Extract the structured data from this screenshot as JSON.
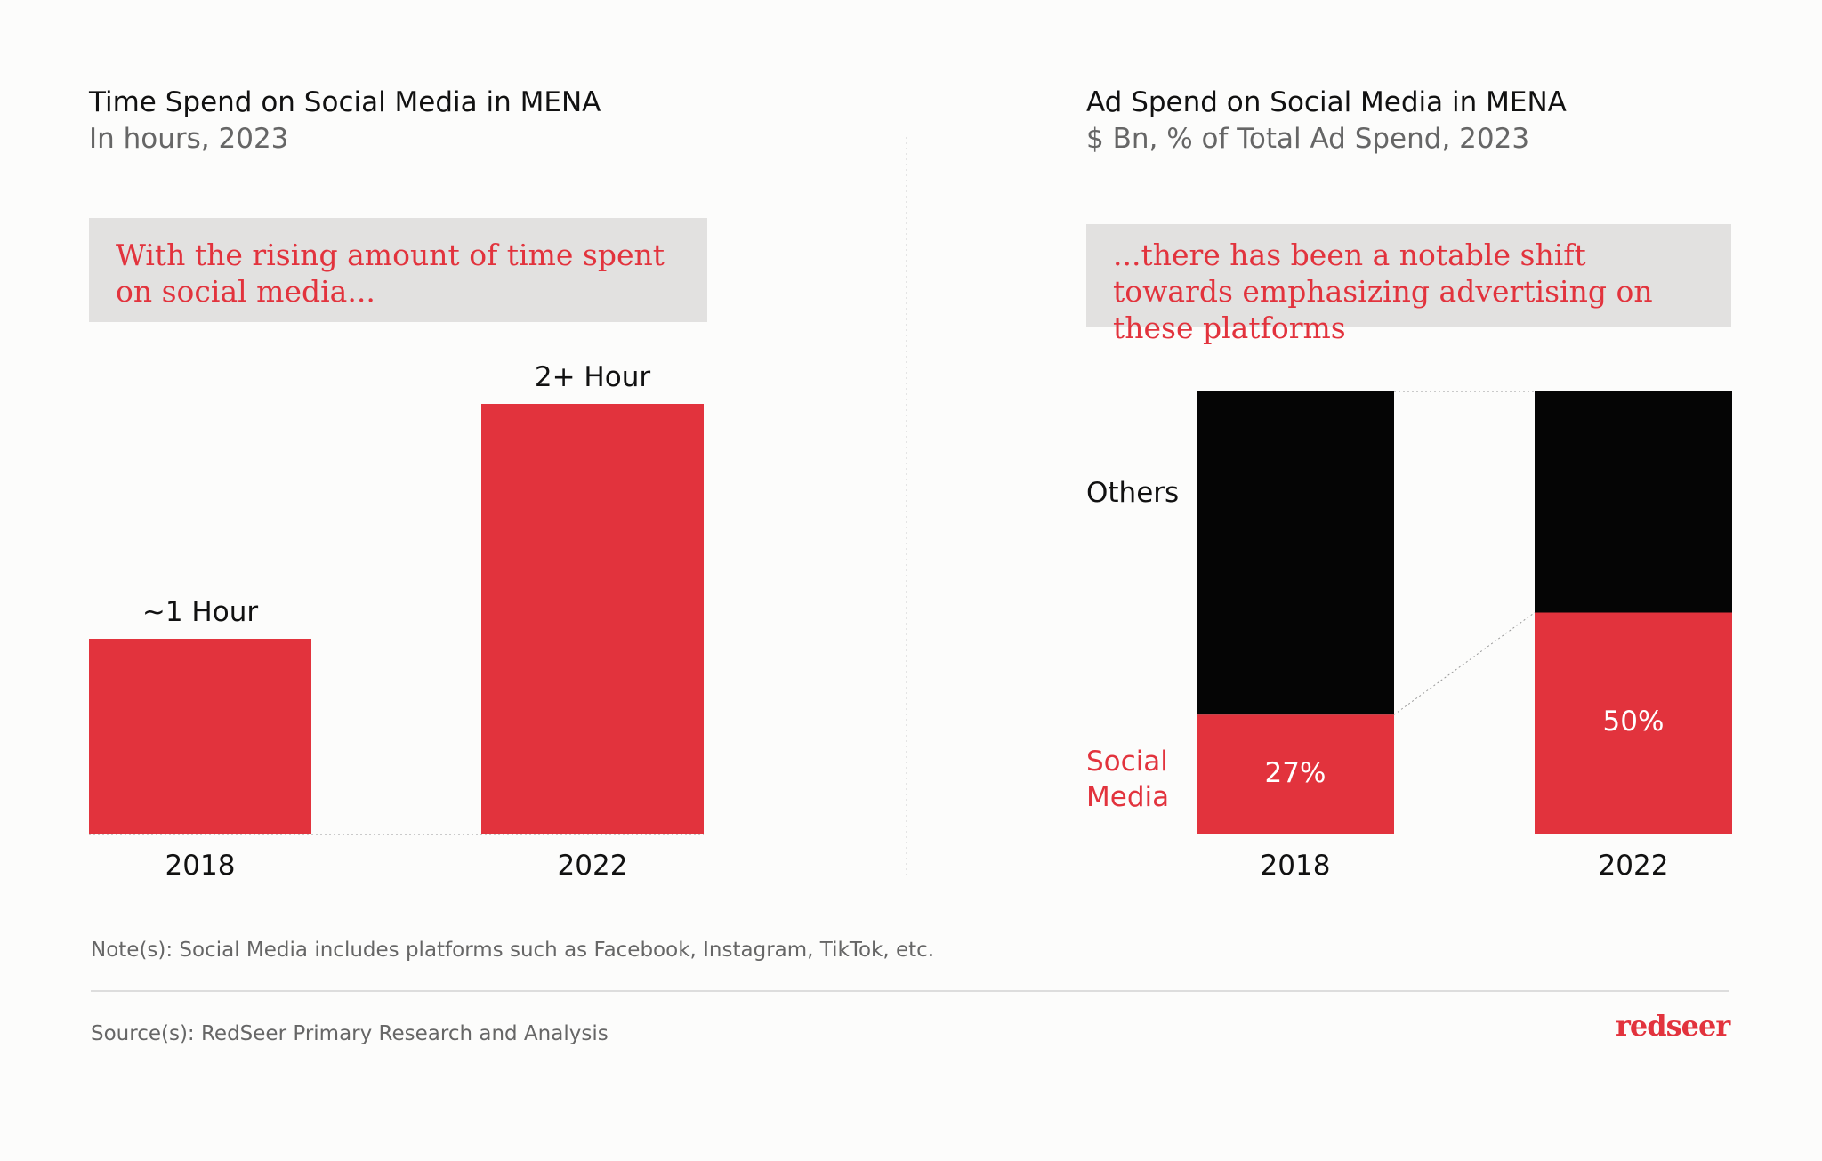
{
  "colors": {
    "accent": "#e2333d",
    "others": "#050505",
    "callout_bg": "#e2e1e0"
  },
  "chart_data": [
    {
      "type": "bar",
      "title": "Time Spend on Social Media in MENA",
      "subtitle": "In hours, 2023",
      "callout": "With the rising amount of time spent on social media...",
      "categories": [
        "2018",
        "2022"
      ],
      "values": [
        1,
        2.2
      ],
      "data_labels": [
        "~1 Hour",
        "2+ Hour"
      ]
    },
    {
      "type": "bar",
      "stacked": true,
      "title": "Ad Spend on Social Media in MENA",
      "subtitle": "$ Bn, % of Total Ad Spend, 2023",
      "callout": "...there has been a notable shift towards emphasizing advertising on these platforms",
      "categories": [
        "2018",
        "2022"
      ],
      "series": [
        {
          "name": "Social Media",
          "values": [
            27,
            50
          ],
          "data_labels": [
            "27%",
            "50%"
          ]
        },
        {
          "name": "Others",
          "values": [
            73,
            50
          ]
        }
      ]
    }
  ],
  "footer": {
    "note": "Note(s): Social Media includes platforms such as Facebook, Instagram, TikTok, etc.",
    "source": "Source(s): RedSeer Primary Research and Analysis",
    "logo": "redseer"
  }
}
